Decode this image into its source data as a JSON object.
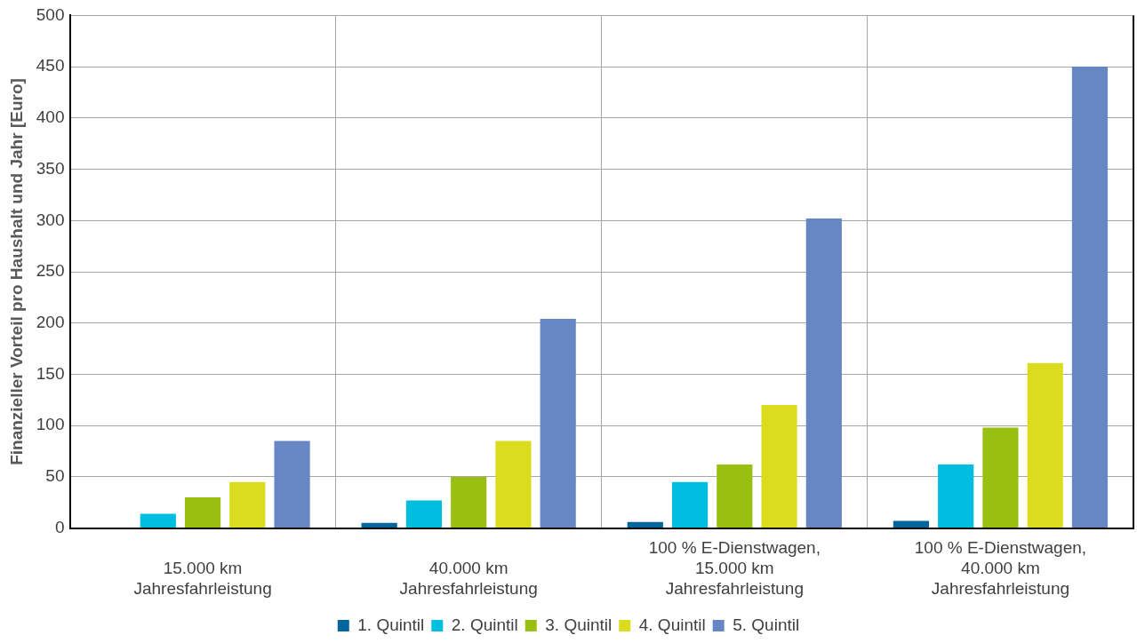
{
  "chart_data": {
    "type": "bar",
    "ylabel": "Finanzieller Vorteil pro Haushalt und Jahr [Euro]",
    "categories": [
      "15.000 km Jahresfahrleistung",
      "40.000 km Jahresfahrleistung",
      "100 % E-Dienstwagen, 15.000 km Jahresfahrleistung",
      "100 % E-Dienstwagen, 40.000 km Jahresfahrleistung"
    ],
    "series": [
      {
        "name": "1. Quintil",
        "color": "#00669c",
        "values": [
          0,
          5,
          6,
          7
        ]
      },
      {
        "name": "2. Quintil",
        "color": "#00bee0",
        "values": [
          14,
          27,
          45,
          62
        ]
      },
      {
        "name": "3. Quintil",
        "color": "#99c010",
        "values": [
          30,
          50,
          62,
          98
        ]
      },
      {
        "name": "4. Quintil",
        "color": "#dcdc1e",
        "values": [
          45,
          85,
          120,
          161
        ]
      },
      {
        "name": "5. Quintil",
        "color": "#6787c4",
        "values": [
          85,
          204,
          302,
          450
        ]
      }
    ],
    "ylim": [
      0,
      500
    ],
    "yticks": [
      0,
      50,
      100,
      150,
      200,
      250,
      300,
      350,
      400,
      450,
      500
    ],
    "grid": true,
    "legend": "bottom"
  }
}
